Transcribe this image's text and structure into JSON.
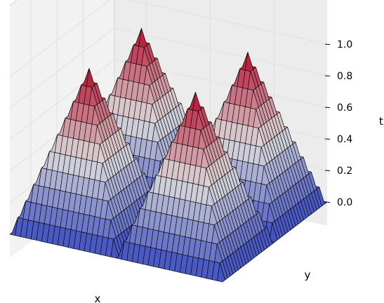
{
  "chart_data": {
    "type": "surface",
    "title": "",
    "xlabel": "x",
    "ylabel": "y",
    "zlabel": "t",
    "x_ticks_visible": false,
    "y_ticks_visible": false,
    "zlim": [
      0.0,
      1.0
    ],
    "zticks": [
      "0.0",
      "0.2",
      "0.4",
      "0.6",
      "0.8",
      "1.0"
    ],
    "colormap": "coolwarm",
    "grid": true,
    "surface": {
      "description_function": "four square pyramids on a 2x2 grid, height 0 at each cell border, 1.0 at each cell center",
      "domain_x": [
        0,
        1
      ],
      "domain_y": [
        0,
        1
      ],
      "samples_per_axis": 40,
      "peak_centers": [
        [
          0.25,
          0.25
        ],
        [
          0.25,
          0.75
        ],
        [
          0.75,
          0.25
        ],
        [
          0.75,
          0.75
        ]
      ],
      "peak_height": 1.0,
      "base_height": 0.0
    },
    "colors": {
      "pane_left": "#f2f2f2",
      "pane_back": "#ececec",
      "pane_floor": "#e8e8e8",
      "grid_line": "#e0e0e0",
      "edge": "#000000",
      "cold": "#3b4cc0",
      "mid": "#dddcdc",
      "hot": "#b40426"
    }
  }
}
